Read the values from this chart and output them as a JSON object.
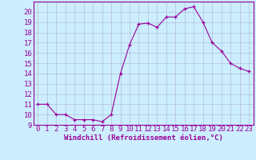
{
  "x": [
    0,
    1,
    2,
    3,
    4,
    5,
    6,
    7,
    8,
    9,
    10,
    11,
    12,
    13,
    14,
    15,
    16,
    17,
    18,
    19,
    20,
    21,
    22,
    23
  ],
  "y": [
    11,
    11,
    10,
    10,
    9.5,
    9.5,
    9.5,
    9.3,
    10,
    14,
    16.8,
    18.8,
    18.9,
    18.5,
    19.5,
    19.5,
    20.3,
    20.5,
    19,
    17,
    16.2,
    15,
    14.5,
    14.2
  ],
  "line_color": "#990099",
  "marker": "+",
  "marker_color": "#990099",
  "bg_color": "#cceeff",
  "grid_color": "#aaaacc",
  "ylim": [
    9,
    21
  ],
  "xlim": [
    -0.5,
    23.5
  ],
  "yticks": [
    9,
    10,
    11,
    12,
    13,
    14,
    15,
    16,
    17,
    18,
    19,
    20
  ],
  "xticks": [
    0,
    1,
    2,
    3,
    4,
    5,
    6,
    7,
    8,
    9,
    10,
    11,
    12,
    13,
    14,
    15,
    16,
    17,
    18,
    19,
    20,
    21,
    22,
    23
  ],
  "xlabel": "Windchill (Refroidissement éolien,°C)",
  "xlabel_fontsize": 6.5,
  "tick_fontsize": 6.5,
  "axes_color": "#990099",
  "spine_color": "#990099"
}
